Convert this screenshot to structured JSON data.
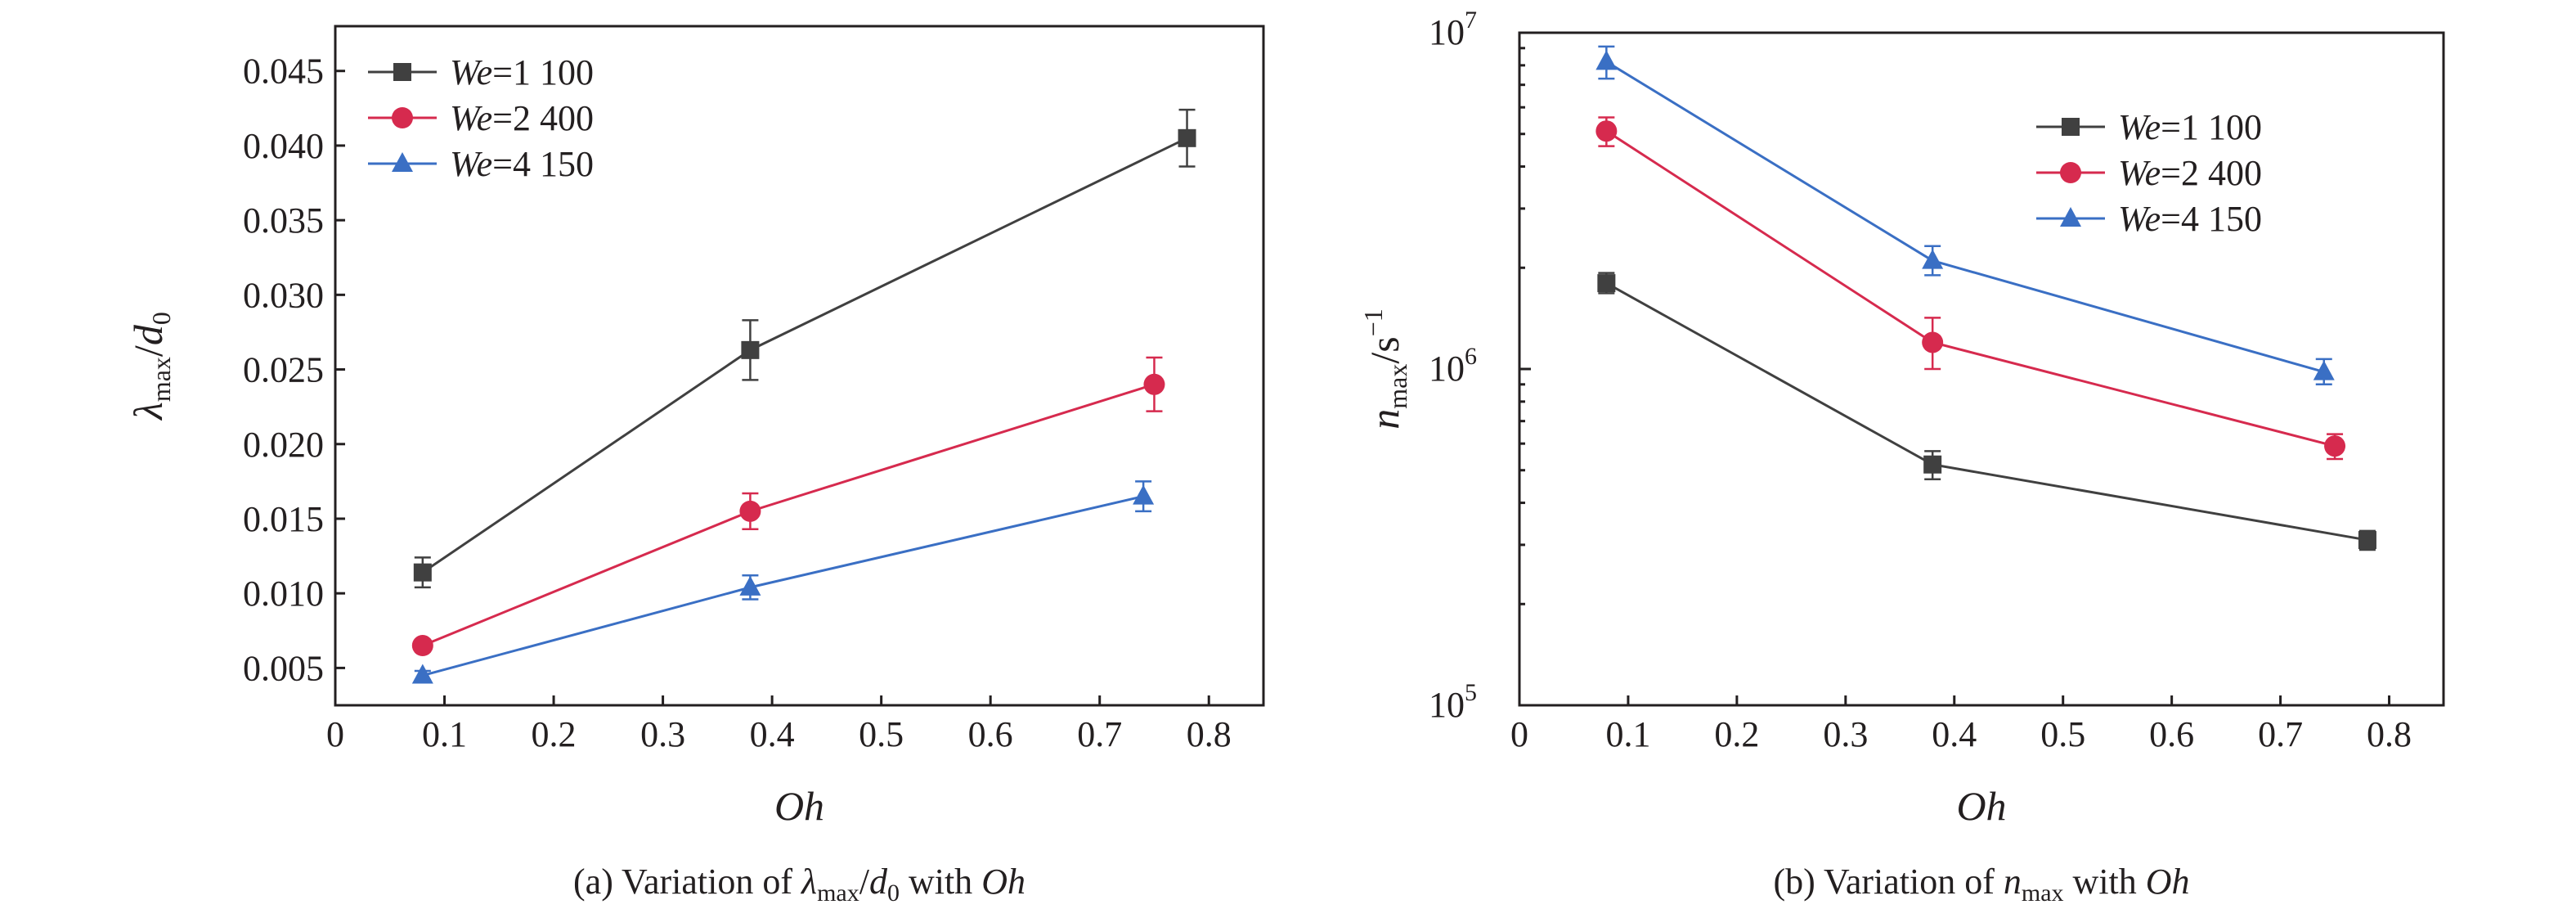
{
  "chart_data": [
    {
      "type": "line",
      "panel": "a",
      "caption": {
        "prefix": "(a) Variation of ",
        "var1": "λ",
        "var1_sub": "max",
        "slash": "/",
        "var2": "d",
        "var2_sub": "0",
        "mid": "  with ",
        "var3": "Oh"
      },
      "xlabel": "Oh",
      "ylabel": {
        "main": "λ",
        "sub": "max",
        "slash": "/",
        "main2": "d",
        "sub2": "0"
      },
      "xlim": [
        0,
        0.85
      ],
      "ylim": [
        0.0025,
        0.048
      ],
      "xticks": [
        "0",
        "0.1",
        "0.2",
        "0.3",
        "0.4",
        "0.5",
        "0.6",
        "0.7",
        "0.8"
      ],
      "xtick_values": [
        0,
        0.1,
        0.2,
        0.3,
        0.4,
        0.5,
        0.6,
        0.7,
        0.8
      ],
      "yticks": [
        "0.005",
        "0.010",
        "0.015",
        "0.020",
        "0.025",
        "0.030",
        "0.035",
        "0.040",
        "0.045"
      ],
      "ytick_values": [
        0.005,
        0.01,
        0.015,
        0.02,
        0.025,
        0.03,
        0.035,
        0.04,
        0.045
      ],
      "scale": "linear",
      "legend_position": "top-left",
      "series": [
        {
          "name_prefix": "We",
          "name_suffix": "=1 100",
          "color": "#404040",
          "marker": "square",
          "x": [
            0.08,
            0.38,
            0.78
          ],
          "y": [
            0.0114,
            0.0263,
            0.0405
          ],
          "err": [
            0.001,
            0.002,
            0.0019
          ]
        },
        {
          "name_prefix": "We",
          "name_suffix": "=2 400",
          "color": "#d62a4e",
          "marker": "circle",
          "x": [
            0.08,
            0.38,
            0.75
          ],
          "y": [
            0.0065,
            0.0155,
            0.024
          ],
          "err": [
            0.0004,
            0.0012,
            0.0018
          ]
        },
        {
          "name_prefix": "We",
          "name_suffix": "=4 150",
          "color": "#3a6fc4",
          "marker": "triangle",
          "x": [
            0.08,
            0.38,
            0.74
          ],
          "y": [
            0.0045,
            0.0104,
            0.0165
          ],
          "err": [
            0.0003,
            0.0008,
            0.001
          ]
        }
      ]
    },
    {
      "type": "line",
      "panel": "b",
      "caption": {
        "prefix": "(b) Variation of ",
        "var1": "n",
        "var1_sub": "max",
        "mid": " with ",
        "var3": "Oh"
      },
      "xlabel": "Oh",
      "ylabel": {
        "main": "n",
        "sub": "max",
        "slash": "/s",
        "sup": "−1"
      },
      "xlim": [
        0,
        0.85
      ],
      "ylim": [
        100000,
        10000000
      ],
      "xticks": [
        "0",
        "0.1",
        "0.2",
        "0.3",
        "0.4",
        "0.5",
        "0.6",
        "0.7",
        "0.8"
      ],
      "xtick_values": [
        0,
        0.1,
        0.2,
        0.3,
        0.4,
        0.5,
        0.6,
        0.7,
        0.8
      ],
      "yticks": [
        {
          "base": "10",
          "exp": "5",
          "value": 100000
        },
        {
          "base": "10",
          "exp": "6",
          "value": 1000000
        },
        {
          "base": "10",
          "exp": "7",
          "value": 10000000
        }
      ],
      "scale": "log",
      "legend_position": "top-right",
      "series": [
        {
          "name_prefix": "We",
          "name_suffix": "=1 100",
          "color": "#404040",
          "marker": "square",
          "x": [
            0.08,
            0.38,
            0.78
          ],
          "y": [
            1800000,
            520000,
            310000
          ],
          "err_lo": [
            1680000,
            470000,
            290000
          ],
          "err_hi": [
            1930000,
            570000,
            330000
          ]
        },
        {
          "name_prefix": "We",
          "name_suffix": "=2 400",
          "color": "#d62a4e",
          "marker": "circle",
          "x": [
            0.08,
            0.38,
            0.75
          ],
          "y": [
            5100000,
            1200000,
            590000
          ],
          "err_lo": [
            4600000,
            1000000,
            540000
          ],
          "err_hi": [
            5600000,
            1420000,
            640000
          ]
        },
        {
          "name_prefix": "We",
          "name_suffix": "=4 150",
          "color": "#3a6fc4",
          "marker": "triangle",
          "x": [
            0.08,
            0.38,
            0.74
          ],
          "y": [
            8200000,
            2100000,
            980000
          ],
          "err_lo": [
            7300000,
            1900000,
            900000
          ],
          "err_hi": [
            9100000,
            2320000,
            1070000
          ]
        }
      ]
    }
  ]
}
